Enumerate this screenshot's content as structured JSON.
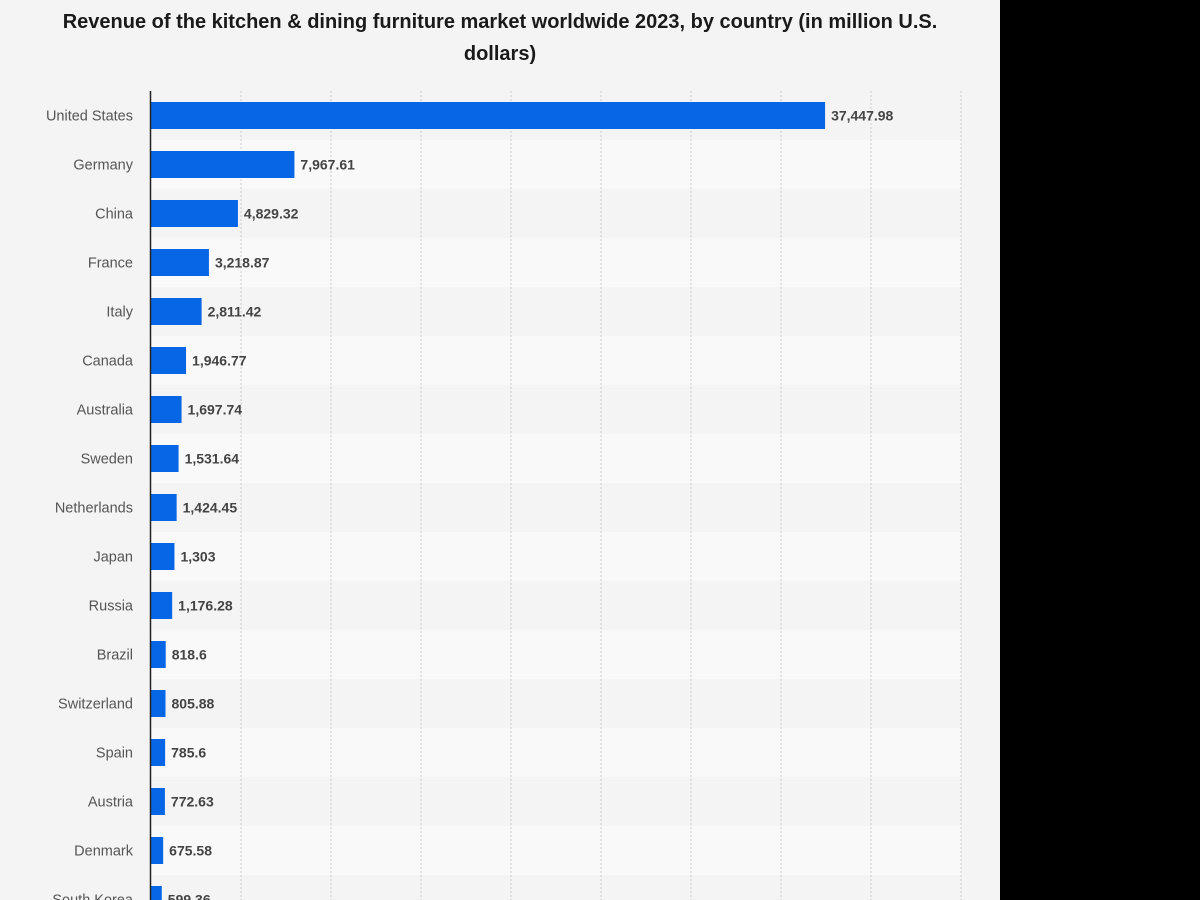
{
  "chart_data": {
    "type": "bar",
    "orientation": "horizontal",
    "title": "Revenue of the kitchen & dining furniture market worldwide 2023, by country (in million U.S. dollars)",
    "xlabel": "",
    "ylabel": "",
    "xlim": [
      0,
      45000
    ],
    "grid": true,
    "categories": [
      "United States",
      "Germany",
      "China",
      "France",
      "Italy",
      "Canada",
      "Australia",
      "Sweden",
      "Netherlands",
      "Japan",
      "Russia",
      "Brazil",
      "Switzerland",
      "Spain",
      "Austria",
      "Denmark",
      "South Korea"
    ],
    "values": [
      37447.98,
      7967.61,
      4829.32,
      3218.87,
      2811.42,
      1946.77,
      1697.74,
      1531.64,
      1424.45,
      1303,
      1176.28,
      818.6,
      805.88,
      785.6,
      772.63,
      675.58,
      599.36
    ],
    "value_labels": [
      "37,447.98",
      "7,967.61",
      "4,829.32",
      "3,218.87",
      "2,811.42",
      "1,946.77",
      "1,697.74",
      "1,531.64",
      "1,424.45",
      "1,303",
      "1,176.28",
      "818.6",
      "805.88",
      "785.6",
      "772.63",
      "675.58",
      "599.36"
    ],
    "colors": {
      "bar": "#0766e6",
      "panel_background": "#f4f4f4",
      "band_light": "#f9f9f9",
      "band_dark": "#f4f4f4",
      "grid": "#cccccc",
      "axis": "#222222"
    }
  }
}
